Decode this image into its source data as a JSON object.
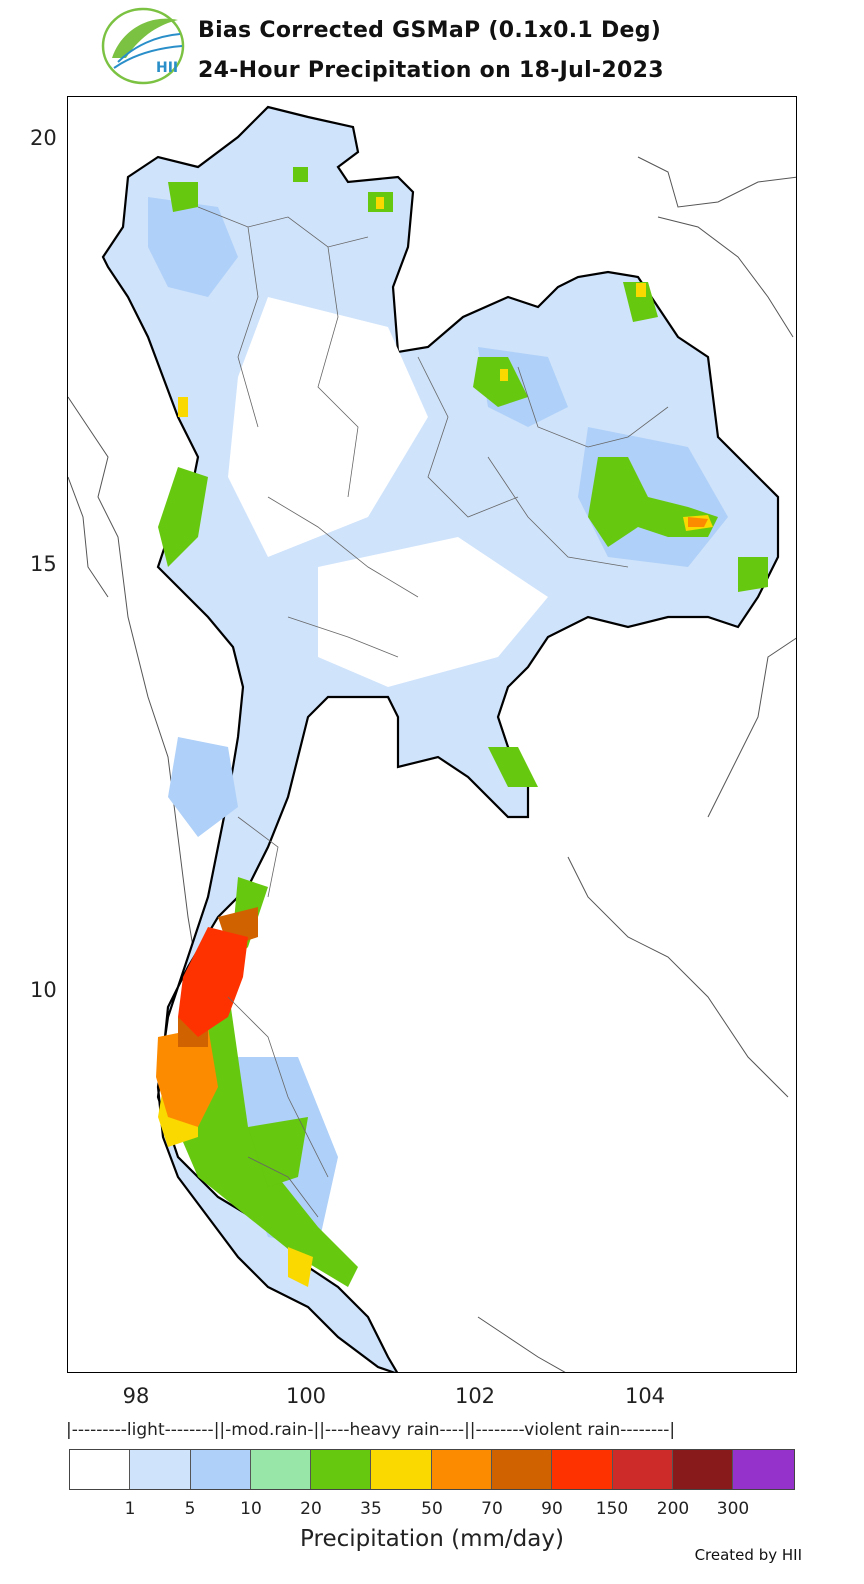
{
  "header": {
    "title_line1": "Bias Corrected GSMaP (0.1x0.1 Deg)",
    "title_line2": "24-Hour Precipitation on 18-Jul-2023",
    "logo_text": "HII"
  },
  "map": {
    "y_ticks": [
      "20",
      "15",
      "10"
    ],
    "x_ticks": [
      "98",
      "100",
      "102",
      "104"
    ],
    "land_fill": "#ffffff",
    "outline_color": "#000000"
  },
  "legend": {
    "category_line": "|---------light--------||-mod.rain-||----heavy rain----||--------violent rain--------|",
    "colors": [
      "#ffffff",
      "#cfe3fb",
      "#afd0f8",
      "#98e6a8",
      "#66c80f",
      "#f9d900",
      "#fd8b00",
      "#d06300",
      "#fe3200",
      "#cd2b2a",
      "#881a1c",
      "#9632cc"
    ],
    "tick_labels": [
      "1",
      "5",
      "10",
      "20",
      "35",
      "50",
      "70",
      "90",
      "150",
      "200",
      "300"
    ],
    "title": "Precipitation (mm/day)"
  },
  "footer": {
    "credit": "Created by HII"
  }
}
